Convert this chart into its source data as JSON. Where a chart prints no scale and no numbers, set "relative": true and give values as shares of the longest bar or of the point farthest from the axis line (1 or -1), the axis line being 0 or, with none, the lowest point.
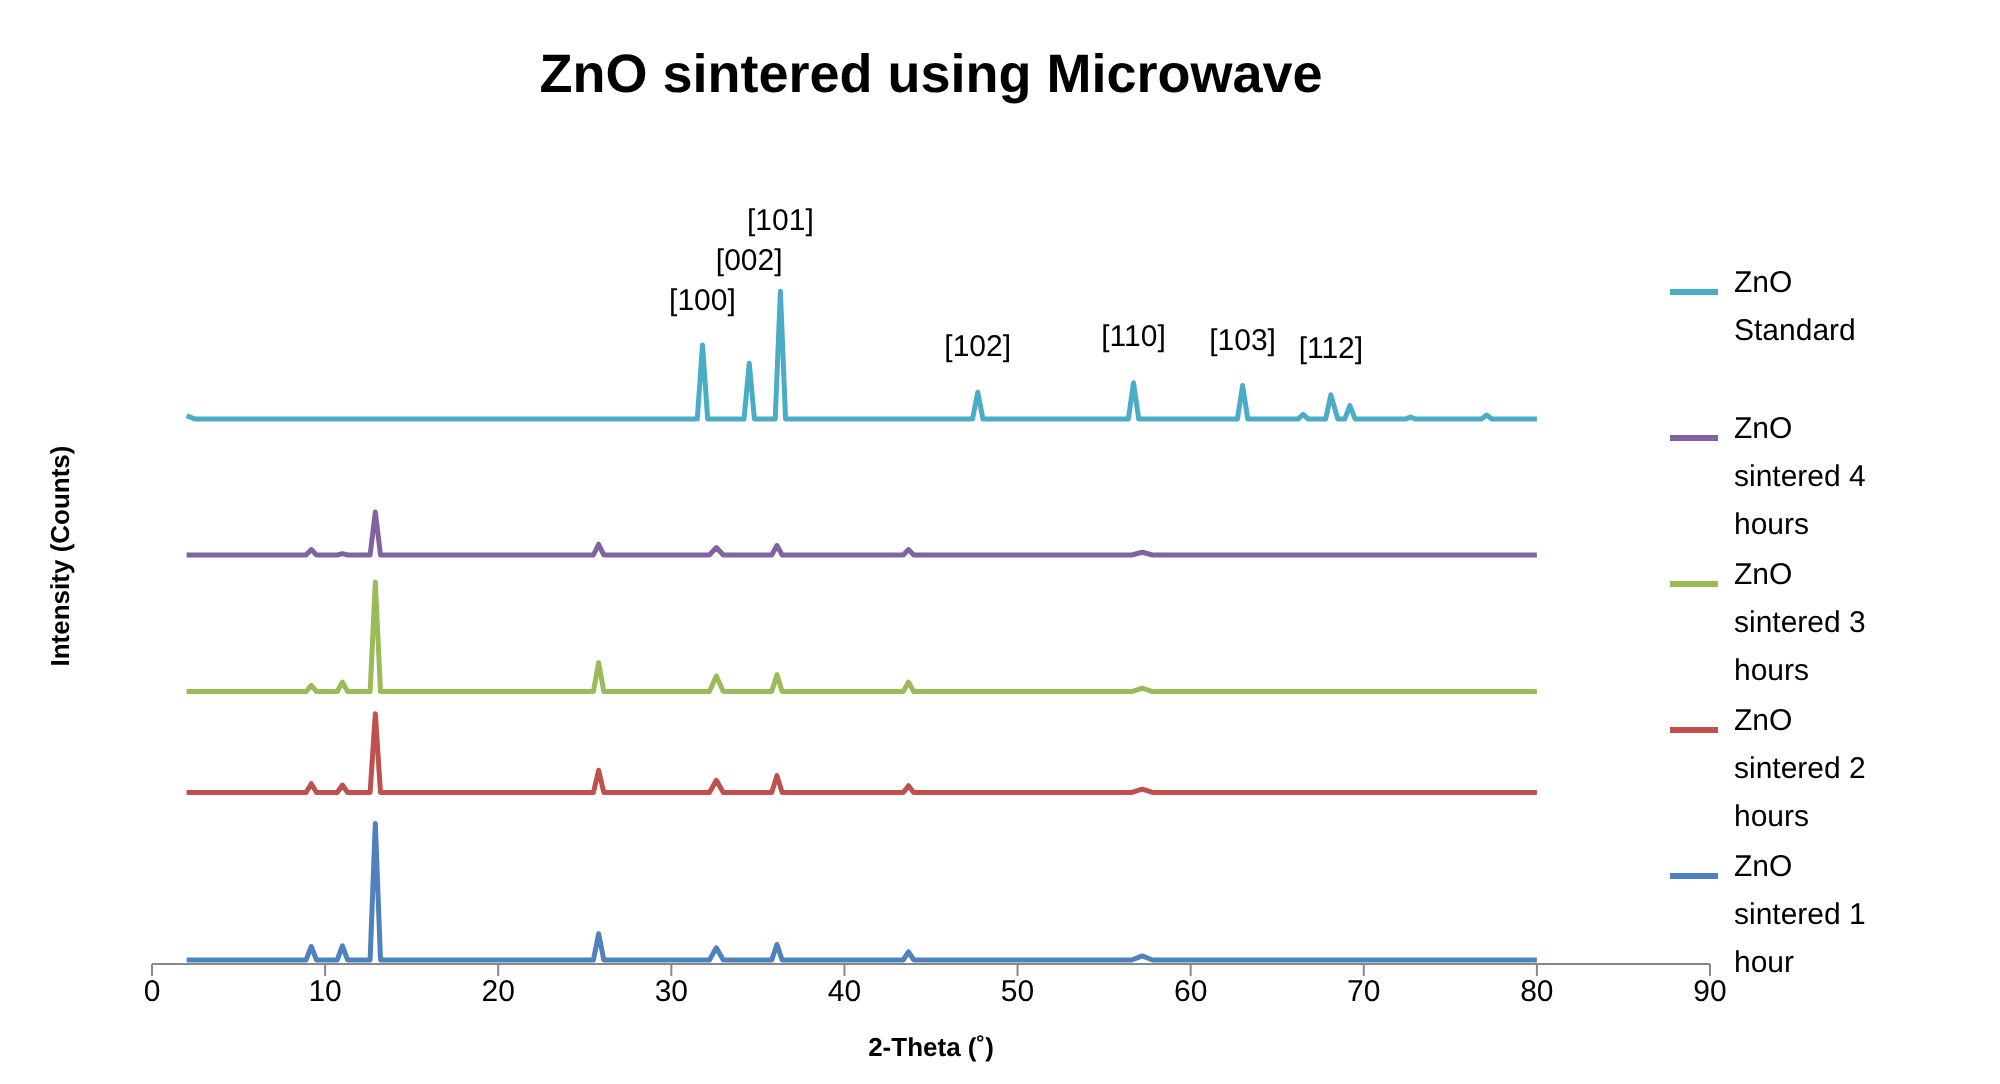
{
  "chart_data": {
    "type": "line",
    "title": "ZnO sintered using Microwave",
    "xlabel": "2-Theta (˚)",
    "ylabel": "Intensity (Counts)",
    "relative": true,
    "xlim": [
      0,
      90
    ],
    "xticks": [
      0,
      10,
      20,
      30,
      40,
      50,
      60,
      70,
      80,
      90
    ],
    "legend": "right",
    "marker": "none",
    "line_style": "solid",
    "series": [
      {
        "name": "ZnO Standard",
        "color": "#4bacc6",
        "x": [
          2,
          2.5,
          31.5,
          31.8,
          32.1,
          34.2,
          34.5,
          34.8,
          36.0,
          36.3,
          36.6,
          47.4,
          47.7,
          48.0,
          56.4,
          56.7,
          57.0,
          62.7,
          63.0,
          63.3,
          66.2,
          66.5,
          66.8,
          67.8,
          68.1,
          68.5,
          68.9,
          69.2,
          69.5,
          72.4,
          72.7,
          73.0,
          76.8,
          77.1,
          77.4,
          80
        ],
        "values": [
          0.815,
          0.81,
          0.81,
          0.92,
          0.81,
          0.81,
          0.893,
          0.81,
          0.81,
          1,
          0.81,
          0.81,
          0.85,
          0.81,
          0.81,
          0.864,
          0.81,
          0.81,
          0.86,
          0.81,
          0.81,
          0.817,
          0.81,
          0.81,
          0.846,
          0.81,
          0.81,
          0.83,
          0.81,
          0.81,
          0.813,
          0.81,
          0.81,
          0.816,
          0.81,
          0.81
        ]
      },
      {
        "name": "ZnO sintered 4 hours",
        "color": "#8064a2",
        "x": [
          2,
          8.9,
          9.2,
          9.5,
          10.7,
          11.0,
          11.3,
          12.6,
          12.9,
          13.2,
          25.5,
          25.8,
          26.1,
          32.2,
          32.6,
          33.0,
          35.8,
          36.1,
          36.4,
          43.4,
          43.7,
          44.0,
          56.6,
          57.2,
          57.8,
          80
        ],
        "values": [
          0.608,
          0.608,
          0.616,
          0.608,
          0.608,
          0.61,
          0.608,
          0.608,
          0.672,
          0.608,
          0.608,
          0.624,
          0.608,
          0.608,
          0.619,
          0.608,
          0.608,
          0.622,
          0.608,
          0.608,
          0.616,
          0.608,
          0.608,
          0.612,
          0.608,
          0.608
        ]
      },
      {
        "name": "ZnO sintered 3 hours",
        "color": "#9bbb59",
        "x": [
          2,
          8.9,
          9.2,
          9.5,
          10.7,
          11.0,
          11.3,
          12.6,
          12.9,
          13.2,
          25.5,
          25.8,
          26.1,
          32.2,
          32.6,
          33.0,
          35.8,
          36.1,
          36.4,
          43.4,
          43.7,
          44.0,
          56.6,
          57.2,
          57.8,
          80
        ],
        "values": [
          0.405,
          0.405,
          0.414,
          0.405,
          0.405,
          0.419,
          0.405,
          0.405,
          0.568,
          0.405,
          0.405,
          0.448,
          0.405,
          0.405,
          0.428,
          0.405,
          0.405,
          0.43,
          0.405,
          0.405,
          0.419,
          0.405,
          0.405,
          0.41,
          0.405,
          0.405
        ]
      },
      {
        "name": "ZnO sintered 2 hours",
        "color": "#c0504d",
        "x": [
          2,
          8.9,
          9.2,
          9.5,
          10.7,
          11.0,
          11.3,
          12.6,
          12.9,
          13.2,
          25.5,
          25.8,
          26.1,
          32.2,
          32.6,
          33.0,
          35.8,
          36.1,
          36.4,
          43.4,
          43.7,
          44.0,
          56.6,
          57.2,
          57.8,
          80
        ],
        "values": [
          0.255,
          0.255,
          0.268,
          0.255,
          0.255,
          0.266,
          0.255,
          0.255,
          0.372,
          0.255,
          0.255,
          0.288,
          0.255,
          0.255,
          0.273,
          0.255,
          0.255,
          0.28,
          0.255,
          0.255,
          0.265,
          0.255,
          0.255,
          0.26,
          0.255,
          0.255
        ]
      },
      {
        "name": "ZnO sintered 1 hour",
        "color": "#4f81bd",
        "x": [
          2,
          8.9,
          9.2,
          9.5,
          10.7,
          11.0,
          11.3,
          12.6,
          12.9,
          13.2,
          25.5,
          25.8,
          26.1,
          32.2,
          32.6,
          33.0,
          35.8,
          36.1,
          36.4,
          43.4,
          43.7,
          44.0,
          56.6,
          57.2,
          57.8,
          80
        ],
        "values": [
          0.006,
          0.006,
          0.026,
          0.006,
          0.006,
          0.027,
          0.006,
          0.006,
          0.209,
          0.006,
          0.006,
          0.045,
          0.006,
          0.006,
          0.024,
          0.006,
          0.006,
          0.029,
          0.006,
          0.006,
          0.018,
          0.006,
          0.006,
          0.012,
          0.006,
          0.006
        ]
      }
    ],
    "annotations": [
      {
        "text": "[100]",
        "x": 31.8,
        "y": 0.92
      },
      {
        "text": "[002]",
        "x": 34.5,
        "y": 0.893
      },
      {
        "text": "[101]",
        "x": 36.3,
        "y": 1
      },
      {
        "text": "[102]",
        "x": 47.7,
        "y": 0.85
      },
      {
        "text": "[110]",
        "x": 56.7,
        "y": 0.864
      },
      {
        "text": "[103]",
        "x": 63.0,
        "y": 0.86
      },
      {
        "text": "[112]",
        "x": 68.1,
        "y": 0.846
      }
    ]
  }
}
